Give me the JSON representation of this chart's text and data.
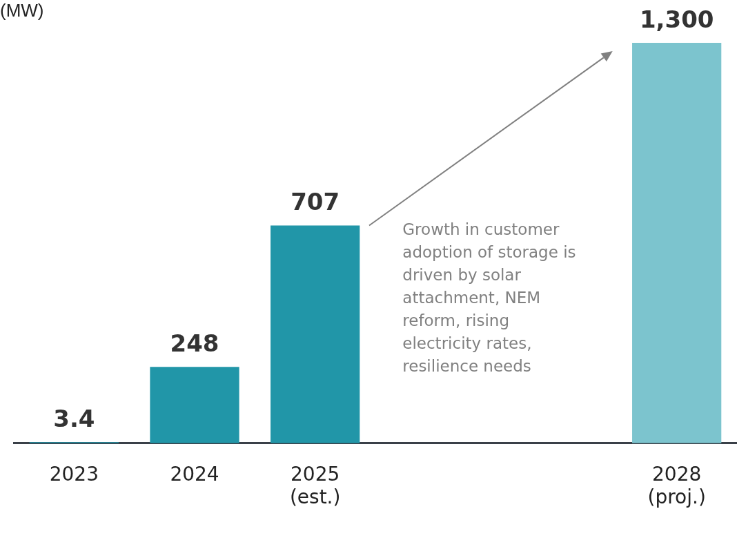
{
  "chart_data": {
    "type": "bar",
    "ylabel": "(MW)",
    "categories": [
      "2023",
      "2024",
      "2025\n(est.)",
      null,
      null,
      "2028\n(proj.)"
    ],
    "values": [
      3.4,
      248,
      707,
      null,
      null,
      1300
    ],
    "colors": [
      "#2196a8",
      "#2196a8",
      "#2196a8",
      "#2196a8",
      "#2196a8",
      "#7cc4ce"
    ],
    "value_labels": [
      "3.4",
      "248",
      "707",
      null,
      null,
      "1,300"
    ],
    "ylim": [
      0,
      1300
    ],
    "grid": false,
    "legend": false,
    "annotations": [
      "Growth in customer adoption of storage is driven by solar attachment, NEM reform, rising electricity rates, resilience needs"
    ]
  }
}
